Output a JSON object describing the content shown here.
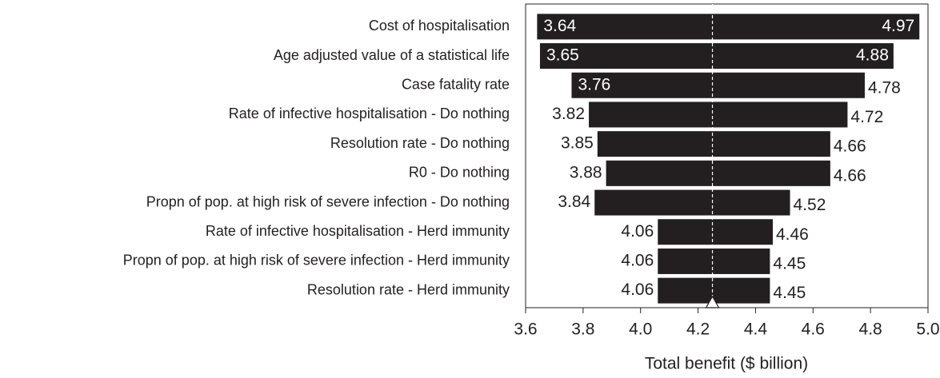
{
  "chart_data": {
    "type": "tornado",
    "categories": [
      "Cost of hospitalisation",
      "Age adjusted value of a statistical life",
      "Case fatality rate",
      "Rate of infective hospitalisation - Do nothing",
      "Resolution rate - Do nothing",
      "R0 - Do nothing",
      "Propn of pop. at high risk of severe infection - Do nothing",
      "Rate of infective hospitalisation - Herd immunity",
      "Propn of pop. at high risk of severe infection - Herd immunity",
      "Resolution rate - Herd immunity"
    ],
    "low_values": [
      3.64,
      3.65,
      3.76,
      3.82,
      3.85,
      3.88,
      3.84,
      4.06,
      4.06,
      4.06
    ],
    "high_values": [
      4.97,
      4.88,
      4.78,
      4.72,
      4.66,
      4.66,
      4.52,
      4.46,
      4.45,
      4.45
    ],
    "base_value": 4.25,
    "color": "#231f20",
    "xlabel": "Total benefit ($ billion)",
    "xlim": [
      3.6,
      5.0
    ],
    "xticks": [
      {
        "value": 3.6,
        "label": "3.6"
      },
      {
        "value": 3.8,
        "label": "3.8"
      },
      {
        "value": 4.0,
        "label": "4.0"
      },
      {
        "value": 4.2,
        "label": "4.2"
      },
      {
        "value": 4.4,
        "label": "4.4"
      },
      {
        "value": 4.6,
        "label": "4.6"
      },
      {
        "value": 4.8,
        "label": "4.8"
      },
      {
        "value": 5.0,
        "label": "5.0"
      }
    ]
  }
}
